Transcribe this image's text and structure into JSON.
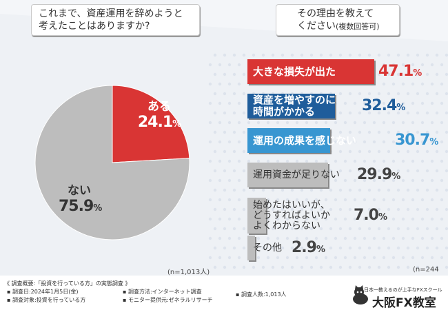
{
  "questions": {
    "left_line1": "これまで、資産運用を辞めようと",
    "left_line2": "考えたことはありますか?",
    "right_line1": "その理由を教えて",
    "right_line2": "ください",
    "right_note": "(複数回答可)"
  },
  "chart_data": [
    {
      "type": "pie",
      "title": "これまで、資産運用を辞めようと考えたことはありますか?",
      "labels": [
        "ある",
        "ない"
      ],
      "values": [
        24.1,
        75.9
      ],
      "display_values": [
        "24.1",
        "75.9"
      ],
      "unit": "%",
      "colors": [
        "#d93534",
        "#bdbdbd"
      ],
      "n_label": "(n=1,013人)"
    },
    {
      "type": "bar",
      "orientation": "horizontal",
      "title": "その理由を教えてください(複数回答可)",
      "categories": [
        "大きな損失が出た",
        "資産を増やすのに時間がかかる",
        "運用の成果を感じない",
        "運用資金が足りない",
        "始めたはいいが、どうすればよいかよくわからない",
        "その他"
      ],
      "display_lines": [
        [
          "大きな損失が出た"
        ],
        [
          "資産を増やすのに",
          "時間がかかる"
        ],
        [
          "運用の成果を感じない"
        ],
        [
          "運用資金が足りない"
        ],
        [
          "始めたはいいが、",
          "どうすればよいか",
          "よくわからない"
        ],
        [
          "その他"
        ]
      ],
      "values": [
        47.1,
        32.4,
        30.7,
        29.9,
        7.0,
        2.9
      ],
      "display_values": [
        "47.1",
        "32.4",
        "30.7",
        "29.9",
        "7.0",
        "2.9"
      ],
      "unit": "%",
      "colors": [
        "#d93534",
        "#1f5d9b",
        "#3896d1",
        "#bdbdbd",
        "#bdbdbd",
        "#bdbdbd"
      ],
      "pct_colors": [
        "#d93534",
        "#1f5d9b",
        "#3896d1",
        "#444444",
        "#444444",
        "#444444"
      ],
      "n_label": "(n=244人)"
    }
  ],
  "footer": {
    "survey_summary": "《 調査概要:「投資を行っている方」の実態調査 》",
    "survey_date": "▪ 調査日:2024年1月5日(金)",
    "survey_target": "▪ 調査対象:投資を行っている方",
    "survey_method": "▪ 調査方法:インターネット調査",
    "survey_provider": "▪ モニター提供元:ゼネラルリサーチ",
    "survey_count": "▪ 調査人数:1,013人"
  },
  "logo": {
    "tagline": "日本一教えるのが上手なFXスクール",
    "name": "大阪FX教室"
  }
}
